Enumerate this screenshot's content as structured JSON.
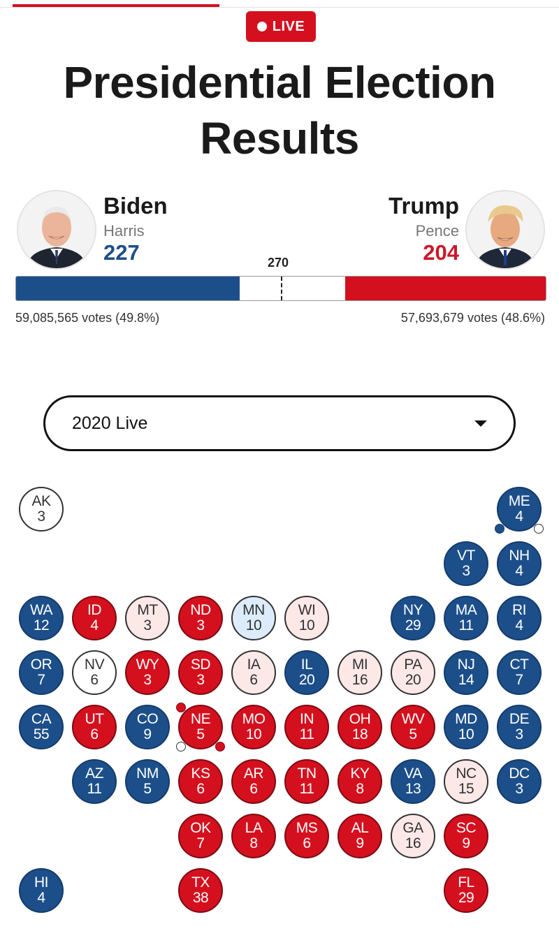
{
  "header": {
    "live_label": "LIVE",
    "title_line1": "Presidential Election",
    "title_line2": "Results"
  },
  "candidates": {
    "left": {
      "name": "Biden",
      "running_mate": "Harris",
      "electoral_votes": "227",
      "popular_votes": "59,085,565 votes (49.8%)",
      "color": "#1c4f8a",
      "photo_icon": "biden-photo"
    },
    "right": {
      "name": "Trump",
      "running_mate": "Pence",
      "electoral_votes": "204",
      "popular_votes": "57,693,679 votes (48.6%)",
      "color": "#d5101e",
      "photo_icon": "trump-photo"
    }
  },
  "threshold": {
    "label": "270",
    "total": 538,
    "left_ev": 227,
    "right_ev": 204
  },
  "selector": {
    "value": "2020 Live",
    "icon": "caret-down-icon"
  },
  "colors": {
    "D": "#1c4f8a",
    "R": "#d5101e",
    "LR": "#fde8e8",
    "LD": "#dcecfa",
    "U": "#ffffff"
  },
  "states": [
    {
      "ab": "AK",
      "ev": "3",
      "s": "U",
      "r": 0,
      "c": 0
    },
    {
      "ab": "ME",
      "ev": "4",
      "s": "D",
      "r": 0,
      "c": 9
    },
    {
      "ab": "VT",
      "ev": "3",
      "s": "D",
      "r": 1,
      "c": 8
    },
    {
      "ab": "NH",
      "ev": "4",
      "s": "D",
      "r": 1,
      "c": 9
    },
    {
      "ab": "WA",
      "ev": "12",
      "s": "D",
      "r": 2,
      "c": 0
    },
    {
      "ab": "ID",
      "ev": "4",
      "s": "R",
      "r": 2,
      "c": 1
    },
    {
      "ab": "MT",
      "ev": "3",
      "s": "LR",
      "r": 2,
      "c": 2
    },
    {
      "ab": "ND",
      "ev": "3",
      "s": "R",
      "r": 2,
      "c": 3
    },
    {
      "ab": "MN",
      "ev": "10",
      "s": "LD",
      "r": 2,
      "c": 4
    },
    {
      "ab": "WI",
      "ev": "10",
      "s": "LR",
      "r": 2,
      "c": 5
    },
    {
      "ab": "NY",
      "ev": "29",
      "s": "D",
      "r": 2,
      "c": 7
    },
    {
      "ab": "MA",
      "ev": "11",
      "s": "D",
      "r": 2,
      "c": 8
    },
    {
      "ab": "RI",
      "ev": "4",
      "s": "D",
      "r": 2,
      "c": 9
    },
    {
      "ab": "OR",
      "ev": "7",
      "s": "D",
      "r": 3,
      "c": 0
    },
    {
      "ab": "NV",
      "ev": "6",
      "s": "U",
      "r": 3,
      "c": 1
    },
    {
      "ab": "WY",
      "ev": "3",
      "s": "R",
      "r": 3,
      "c": 2
    },
    {
      "ab": "SD",
      "ev": "3",
      "s": "R",
      "r": 3,
      "c": 3
    },
    {
      "ab": "IA",
      "ev": "6",
      "s": "LR",
      "r": 3,
      "c": 4
    },
    {
      "ab": "IL",
      "ev": "20",
      "s": "D",
      "r": 3,
      "c": 5
    },
    {
      "ab": "MI",
      "ev": "16",
      "s": "LR",
      "r": 3,
      "c": 6
    },
    {
      "ab": "PA",
      "ev": "20",
      "s": "LR",
      "r": 3,
      "c": 7
    },
    {
      "ab": "NJ",
      "ev": "14",
      "s": "D",
      "r": 3,
      "c": 8
    },
    {
      "ab": "CT",
      "ev": "7",
      "s": "D",
      "r": 3,
      "c": 9
    },
    {
      "ab": "CA",
      "ev": "55",
      "s": "D",
      "r": 4,
      "c": 0
    },
    {
      "ab": "UT",
      "ev": "6",
      "s": "R",
      "r": 4,
      "c": 1
    },
    {
      "ab": "CO",
      "ev": "9",
      "s": "D",
      "r": 4,
      "c": 2
    },
    {
      "ab": "NE",
      "ev": "5",
      "s": "R",
      "r": 4,
      "c": 3
    },
    {
      "ab": "MO",
      "ev": "10",
      "s": "R",
      "r": 4,
      "c": 4
    },
    {
      "ab": "IN",
      "ev": "11",
      "s": "R",
      "r": 4,
      "c": 5
    },
    {
      "ab": "OH",
      "ev": "18",
      "s": "R",
      "r": 4,
      "c": 6
    },
    {
      "ab": "WV",
      "ev": "5",
      "s": "R",
      "r": 4,
      "c": 7
    },
    {
      "ab": "MD",
      "ev": "10",
      "s": "D",
      "r": 4,
      "c": 8
    },
    {
      "ab": "DE",
      "ev": "3",
      "s": "D",
      "r": 4,
      "c": 9
    },
    {
      "ab": "AZ",
      "ev": "11",
      "s": "D",
      "r": 5,
      "c": 1
    },
    {
      "ab": "NM",
      "ev": "5",
      "s": "D",
      "r": 5,
      "c": 2
    },
    {
      "ab": "KS",
      "ev": "6",
      "s": "R",
      "r": 5,
      "c": 3
    },
    {
      "ab": "AR",
      "ev": "6",
      "s": "R",
      "r": 5,
      "c": 4
    },
    {
      "ab": "TN",
      "ev": "11",
      "s": "R",
      "r": 5,
      "c": 5
    },
    {
      "ab": "KY",
      "ev": "8",
      "s": "R",
      "r": 5,
      "c": 6
    },
    {
      "ab": "VA",
      "ev": "13",
      "s": "D",
      "r": 5,
      "c": 7
    },
    {
      "ab": "NC",
      "ev": "15",
      "s": "LR",
      "r": 5,
      "c": 8
    },
    {
      "ab": "DC",
      "ev": "3",
      "s": "D",
      "r": 5,
      "c": 9
    },
    {
      "ab": "OK",
      "ev": "7",
      "s": "R",
      "r": 6,
      "c": 3
    },
    {
      "ab": "LA",
      "ev": "8",
      "s": "R",
      "r": 6,
      "c": 4
    },
    {
      "ab": "MS",
      "ev": "6",
      "s": "R",
      "r": 6,
      "c": 5
    },
    {
      "ab": "AL",
      "ev": "9",
      "s": "R",
      "r": 6,
      "c": 6
    },
    {
      "ab": "GA",
      "ev": "16",
      "s": "LR",
      "r": 6,
      "c": 7
    },
    {
      "ab": "SC",
      "ev": "9",
      "s": "R",
      "r": 6,
      "c": 8
    },
    {
      "ab": "HI",
      "ev": "4",
      "s": "D",
      "r": 7,
      "c": 0
    },
    {
      "ab": "TX",
      "ev": "38",
      "s": "R",
      "r": 7,
      "c": 3
    },
    {
      "ab": "FL",
      "ev": "29",
      "s": "R",
      "r": 7,
      "c": 8
    }
  ],
  "districts": {
    "ME": [
      {
        "pos": "bl",
        "s": "D"
      },
      {
        "pos": "br",
        "s": "U"
      }
    ],
    "NE": [
      {
        "pos": "tl",
        "s": "R"
      },
      {
        "pos": "bl",
        "s": "U"
      },
      {
        "pos": "br",
        "s": "R"
      }
    ]
  }
}
